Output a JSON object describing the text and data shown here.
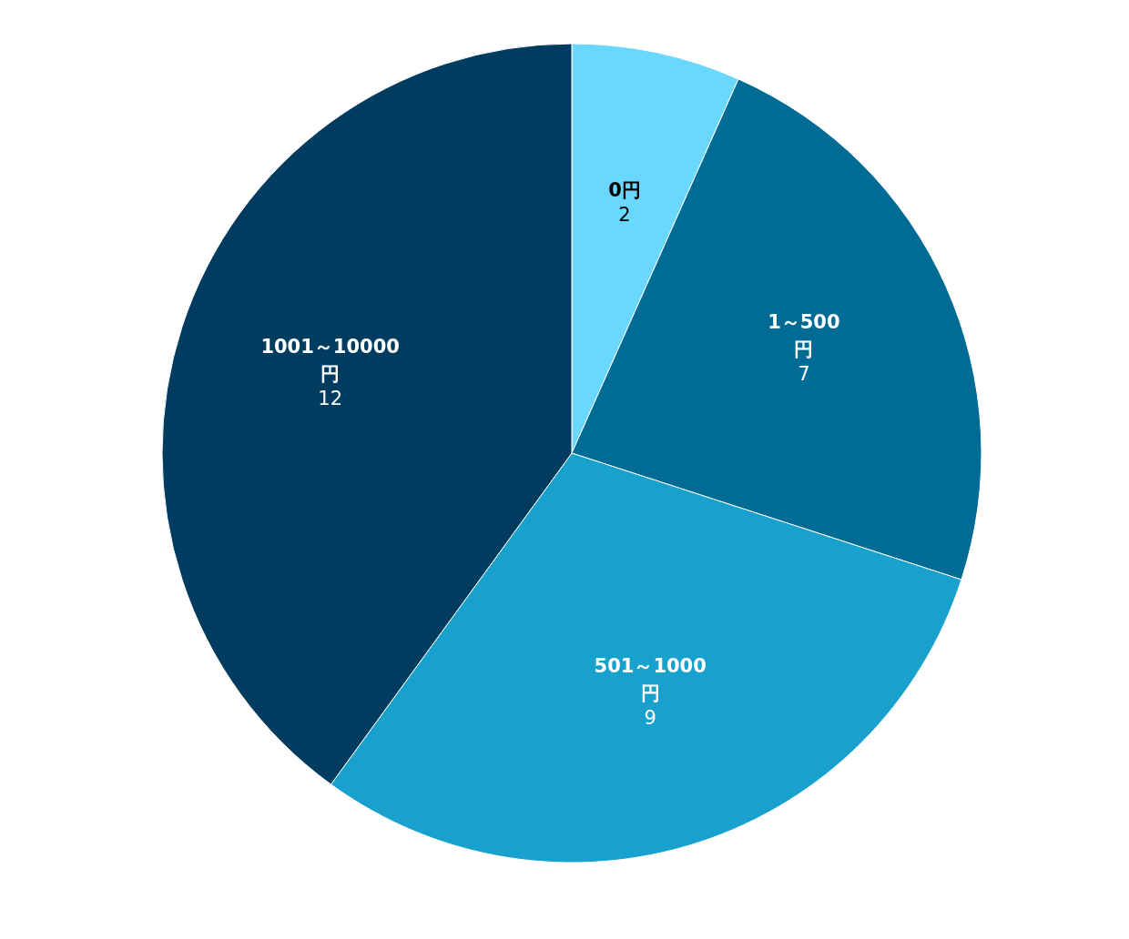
{
  "chart_data": {
    "type": "pie",
    "categories": [
      "0円",
      "1～500円",
      "501～1000円",
      "1001～10000円"
    ],
    "values": [
      2,
      7,
      9,
      12
    ],
    "colors": [
      "#6ad7ff",
      "#006c96",
      "#18a1cd",
      "#003c5f"
    ],
    "data_labels": true
  }
}
